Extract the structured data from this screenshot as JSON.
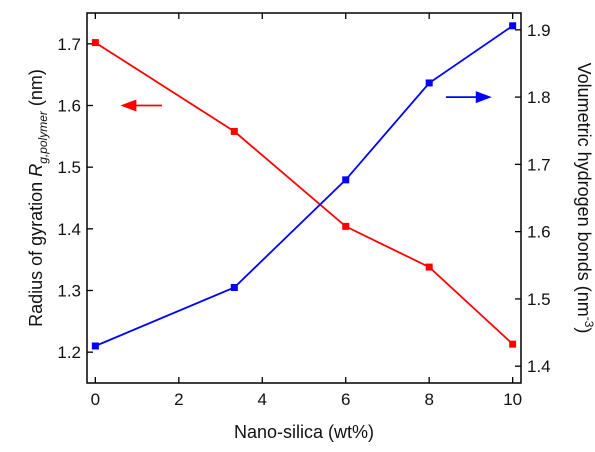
{
  "chart_data": {
    "type": "line",
    "x": [
      0,
      3.33,
      6,
      8,
      10
    ],
    "xlabel": "Nano-silica (wt%)",
    "xlim": [
      -0.2,
      10.2
    ],
    "xticks": [
      0,
      2,
      4,
      6,
      8,
      10
    ],
    "ylabel_left": {
      "prefix": "Radius of gyration ",
      "symbol": "R",
      "subscript": "g,polymer",
      "unit": " (nm)"
    },
    "ylim_left": [
      1.15,
      1.75
    ],
    "yticks_left": [
      "1.2",
      "1.3",
      "1.4",
      "1.5",
      "1.6",
      "1.7"
    ],
    "ylabel_right": {
      "text": "Volumetric hydrogen bonds (nm",
      "superscript": "-3",
      "close": ")"
    },
    "ylim_right": [
      1.375,
      1.925
    ],
    "yticks_right": [
      "1.4",
      "1.5",
      "1.6",
      "1.7",
      "1.8",
      "1.9"
    ],
    "grid": false,
    "series": [
      {
        "axis": "left",
        "color": "#ff0000",
        "marker": "square",
        "values": [
          1.702,
          1.558,
          1.404,
          1.338,
          1.213
        ],
        "arrow": "points-left"
      },
      {
        "axis": "right",
        "color": "#0000ff",
        "marker": "square",
        "values": [
          1.43,
          1.517,
          1.677,
          1.821,
          1.906
        ],
        "arrow": "points-right"
      }
    ]
  }
}
